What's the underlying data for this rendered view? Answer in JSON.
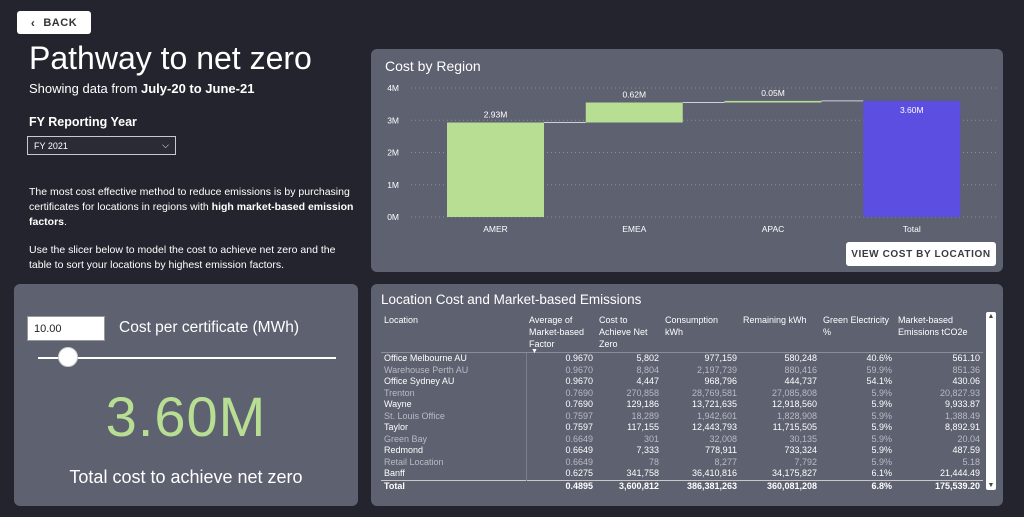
{
  "nav": {
    "back_label": "BACK"
  },
  "header": {
    "title": "Pathway to net zero",
    "subtitle_prefix": "Showing data from ",
    "subtitle_range": "July-20 to June-21"
  },
  "filter": {
    "label": "FY Reporting Year",
    "selected": "FY 2021"
  },
  "description": {
    "p1_start": "The most cost effective method to reduce emissions is by purchasing certificates for locations in regions with ",
    "p1_bold": "high market-based emission factors",
    "p1_end": ".",
    "p2": "Use the slicer below to model the cost to achieve net zero and the table to sort your locations by highest emission factors."
  },
  "slicer": {
    "value": "10.00",
    "label": "Cost per certificate (MWh)",
    "position_fraction": 0.1
  },
  "kpi": {
    "value": "3.60M",
    "label": "Total cost to achieve net zero"
  },
  "chart_panel": {
    "view_button": "VIEW COST BY LOCATION"
  },
  "chart_data": {
    "type": "bar",
    "subtype": "waterfall",
    "title": "Cost by Region",
    "categories": [
      "AMER",
      "EMEA",
      "APAC",
      "Total"
    ],
    "values": [
      2.93,
      0.62,
      0.05,
      3.6
    ],
    "data_labels": [
      "2.93M",
      "0.62M",
      "0.05M",
      "3.60M"
    ],
    "y_ticks": [
      "0M",
      "1M",
      "2M",
      "3M",
      "4M"
    ],
    "ylim": [
      0,
      4
    ],
    "grid": true,
    "colors": {
      "increase": "#b8de94",
      "total": "#5b4ee0"
    }
  },
  "table": {
    "title": "Location Cost and Market-based Emissions",
    "columns": [
      "Location",
      "Average of Market-based Factor",
      "Cost to Achieve Net Zero",
      "Consumption kWh",
      "Remaining kWh",
      "Green Electricity %",
      "Market-based Emissions tCO2e"
    ],
    "sort_indicator": "▼",
    "rows": [
      {
        "loc": "Office Melbourne AU",
        "factor": "0.9670",
        "cost": "5,802",
        "cons": "977,159",
        "rem": "580,248",
        "green": "40.6%",
        "emis": "561.10",
        "dim": false
      },
      {
        "loc": "Warehouse Perth AU",
        "factor": "0.9670",
        "cost": "8,804",
        "cons": "2,197,739",
        "rem": "880,416",
        "green": "59.9%",
        "emis": "851.36",
        "dim": true
      },
      {
        "loc": "Office Sydney AU",
        "factor": "0.9670",
        "cost": "4,447",
        "cons": "968,796",
        "rem": "444,737",
        "green": "54.1%",
        "emis": "430.06",
        "dim": false
      },
      {
        "loc": "Trenton",
        "factor": "0.7690",
        "cost": "270,858",
        "cons": "28,769,581",
        "rem": "27,085,808",
        "green": "5.9%",
        "emis": "20,827.93",
        "dim": true
      },
      {
        "loc": "Wayne",
        "factor": "0.7690",
        "cost": "129,186",
        "cons": "13,721,635",
        "rem": "12,918,560",
        "green": "5.9%",
        "emis": "9,933.87",
        "dim": false
      },
      {
        "loc": "St. Louis Office",
        "factor": "0.7597",
        "cost": "18,289",
        "cons": "1,942,601",
        "rem": "1,828,908",
        "green": "5.9%",
        "emis": "1,388.49",
        "dim": true
      },
      {
        "loc": "Taylor",
        "factor": "0.7597",
        "cost": "117,155",
        "cons": "12,443,793",
        "rem": "11,715,505",
        "green": "5.9%",
        "emis": "8,892.91",
        "dim": false
      },
      {
        "loc": "Green Bay",
        "factor": "0.6649",
        "cost": "301",
        "cons": "32,008",
        "rem": "30,135",
        "green": "5.9%",
        "emis": "20.04",
        "dim": true
      },
      {
        "loc": "Redmond",
        "factor": "0.6649",
        "cost": "7,333",
        "cons": "778,911",
        "rem": "733,324",
        "green": "5.9%",
        "emis": "487.59",
        "dim": false
      },
      {
        "loc": "Retail Location",
        "factor": "0.6649",
        "cost": "78",
        "cons": "8,277",
        "rem": "7,792",
        "green": "5.9%",
        "emis": "5.18",
        "dim": true
      },
      {
        "loc": "Banff",
        "factor": "0.6275",
        "cost": "341,758",
        "cons": "36,410,816",
        "rem": "34,175,827",
        "green": "6.1%",
        "emis": "21,444.49",
        "dim": false
      }
    ],
    "total": {
      "loc": "Total",
      "factor": "0.4895",
      "cost": "3,600,812",
      "cons": "386,381,263",
      "rem": "360,081,208",
      "green": "6.8%",
      "emis": "175,539.20"
    }
  }
}
